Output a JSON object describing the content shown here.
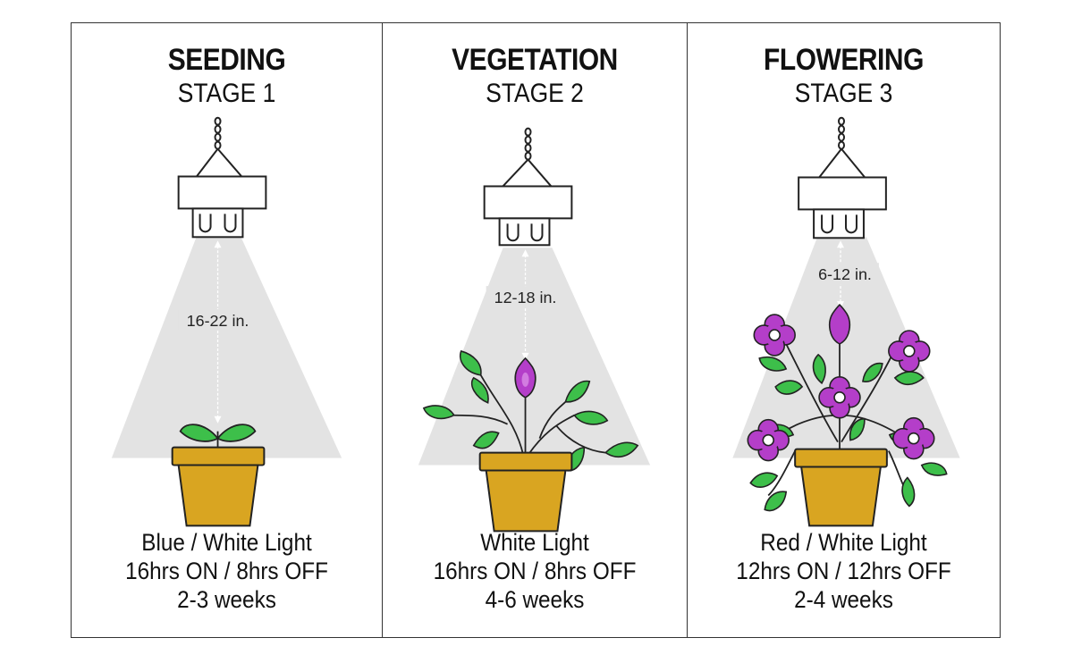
{
  "stages": [
    {
      "title": "SEEDING",
      "stage": "STAGE 1",
      "distance": "16-22 in.",
      "light": "Blue / White Light",
      "cycle": "16hrs ON / 8hrs OFF",
      "duration": "2-3 weeks"
    },
    {
      "title": "VEGETATION",
      "stage": "STAGE 2",
      "distance": "12-18 in.",
      "light": "White Light",
      "cycle": "16hrs ON / 8hrs OFF",
      "duration": "4-6 weeks"
    },
    {
      "title": "FLOWERING",
      "stage": "STAGE 3",
      "distance": "6-12 in.",
      "light": "Red / White Light",
      "cycle": "12hrs ON / 12hrs OFF",
      "duration": "2-4 weeks"
    }
  ],
  "colors": {
    "beam": "#e3e3e3",
    "pot": "#d9a521",
    "leaf": "#3dbf4a",
    "flower": "#b43ec9",
    "outline": "#222222"
  },
  "icons": [
    "grow-light-icon",
    "plant-pot-icon",
    "leaf-icon",
    "flower-icon"
  ]
}
